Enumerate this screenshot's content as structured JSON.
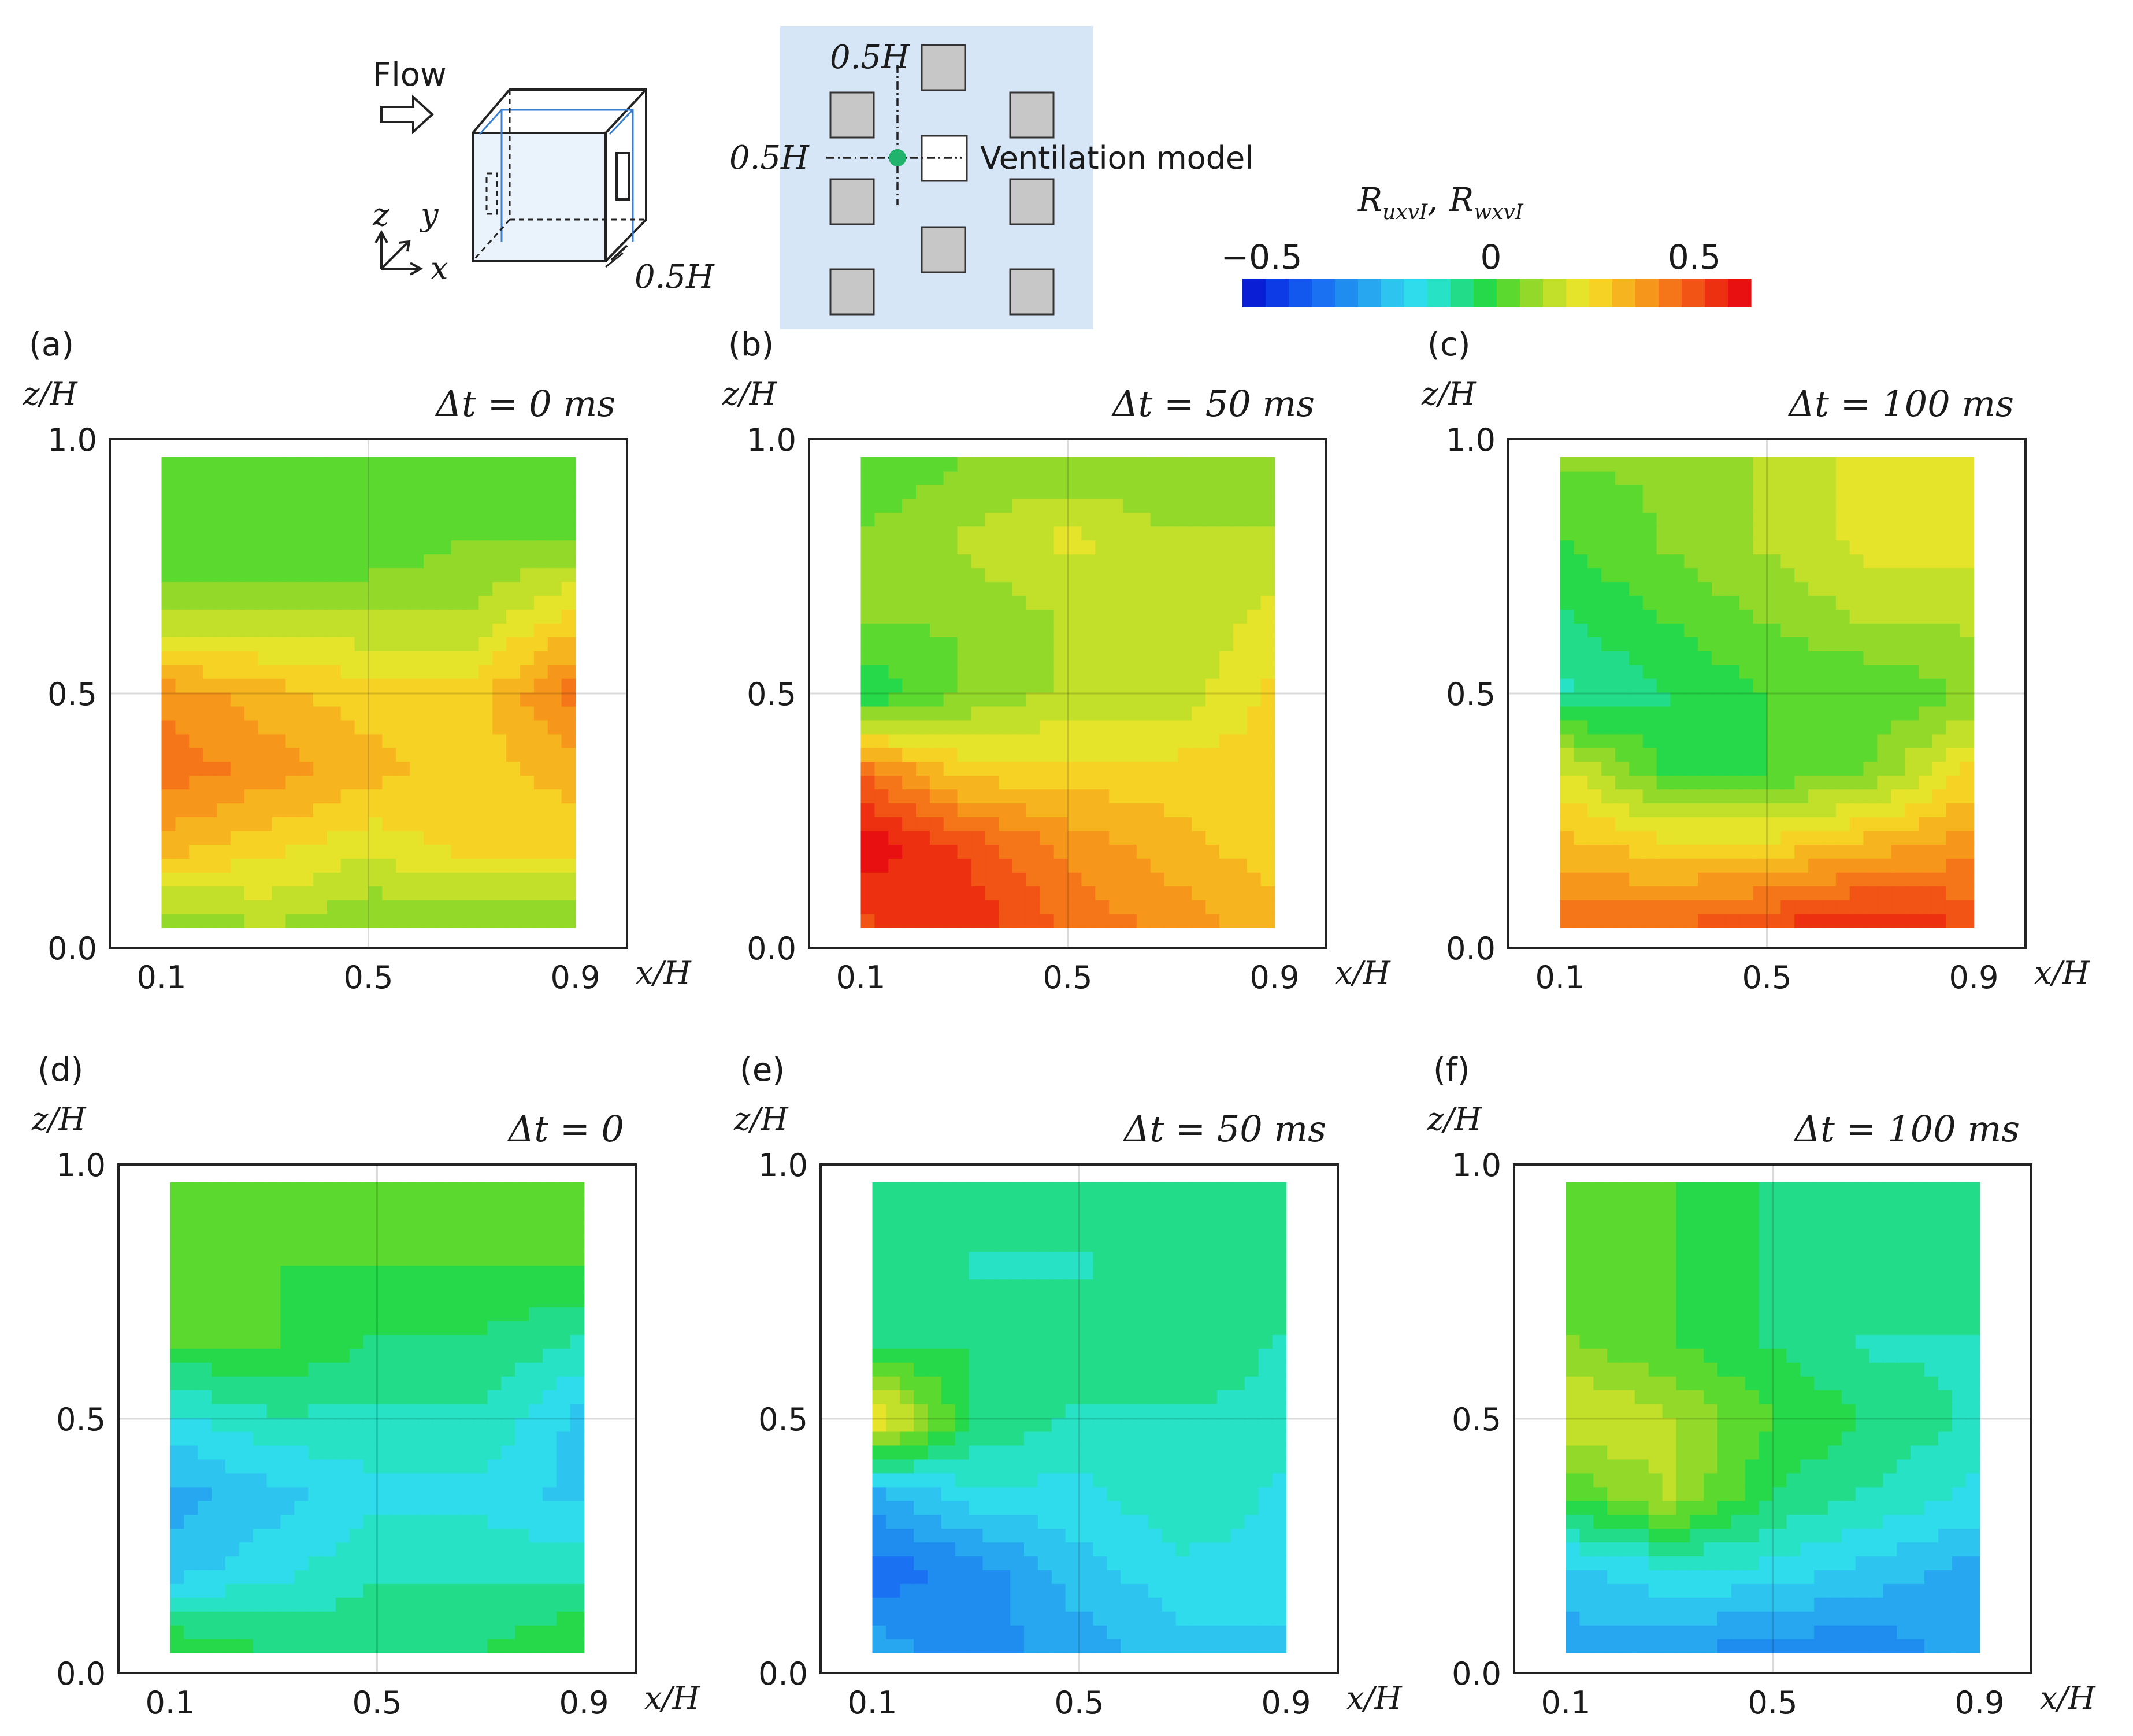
{
  "header": {
    "flow_label": "Flow",
    "axis_z": "z",
    "axis_y": "y",
    "axis_x": "x",
    "cube_opening_label": "0.5H",
    "plan_top_label": "0.5H",
    "plan_left_label": "0.5H",
    "ventilation_label": "Ventilation model"
  },
  "colorbar": {
    "title": "R_{u_x v_I}, R_{w_x v_I}",
    "title_a": "R",
    "title_a_sub": "uxvI",
    "title_sep": ",",
    "title_b": "R",
    "title_b_sub": "wxvI",
    "tick_min": "−0.5",
    "tick_mid": "0",
    "tick_max": "0.5",
    "range": [
      -0.5,
      0.5
    ],
    "colors": [
      "#0a1ed6",
      "#0d3ce6",
      "#1257ee",
      "#1a72f2",
      "#1f8cf0",
      "#26a7f0",
      "#2ec4f0",
      "#2fdcec",
      "#27e2c4",
      "#22dc8a",
      "#26d94a",
      "#5cd92e",
      "#93d92a",
      "#c2e02a",
      "#e6e42a",
      "#f6d224",
      "#f6b41e",
      "#f6961a",
      "#f47618",
      "#f15414",
      "#ec3010",
      "#e81010"
    ]
  },
  "panels": [
    {
      "id": "a",
      "letter": "(a)",
      "dt": "Δt = 0 ms",
      "field": "ux",
      "lag": 0
    },
    {
      "id": "b",
      "letter": "(b)",
      "dt": "Δt = 50 ms",
      "field": "ux",
      "lag": 50
    },
    {
      "id": "c",
      "letter": "(c)",
      "dt": "Δt = 100 ms",
      "field": "ux",
      "lag": 100
    },
    {
      "id": "d",
      "letter": "(d)",
      "dt": "Δt = 0",
      "field": "wx",
      "lag": 0
    },
    {
      "id": "e",
      "letter": "(e)",
      "dt": "Δt = 50 ms",
      "field": "wx",
      "lag": 50
    },
    {
      "id": "f",
      "letter": "(f)",
      "dt": "Δt = 100 ms",
      "field": "wx",
      "lag": 100
    }
  ],
  "axes": {
    "ylabel": "z/H",
    "xlabel": "x/H",
    "yticks": [
      "1.0",
      "0.5",
      "0.0"
    ],
    "xticks": [
      "0.1",
      "0.5",
      "0.9"
    ]
  },
  "chart_data": {
    "type": "heatmap",
    "title": "",
    "xlabel": "x/H",
    "ylabel": "z/H",
    "xlim": [
      0.0,
      1.0
    ],
    "ylim": [
      0.0,
      1.0
    ],
    "x": [
      0.1,
      0.3,
      0.5,
      0.7,
      0.9
    ],
    "y": [
      0.05,
      0.2,
      0.35,
      0.5,
      0.65,
      0.8,
      0.95
    ],
    "series": [
      {
        "name": "(a) R_uxvI, Δt = 0 ms",
        "values": [
          [
            0.05,
            0.1,
            0.05,
            0.05,
            0.05
          ],
          [
            0.25,
            0.2,
            0.15,
            0.2,
            0.2
          ],
          [
            0.35,
            0.3,
            0.25,
            0.2,
            0.25
          ],
          [
            0.3,
            0.25,
            0.2,
            0.2,
            0.35
          ],
          [
            0.1,
            0.1,
            0.1,
            0.1,
            0.2
          ],
          [
            0.0,
            0.0,
            0.0,
            0.05,
            0.05
          ],
          [
            0.0,
            0.0,
            0.0,
            0.0,
            0.0
          ]
        ]
      },
      {
        "name": "(b) R_uxvI, Δt = 50 ms",
        "values": [
          [
            0.4,
            0.45,
            0.35,
            0.3,
            0.25
          ],
          [
            0.5,
            0.4,
            0.3,
            0.25,
            0.2
          ],
          [
            0.35,
            0.2,
            0.2,
            0.2,
            0.2
          ],
          [
            -0.05,
            0.05,
            0.1,
            0.1,
            0.2
          ],
          [
            0.05,
            0.05,
            0.1,
            0.1,
            0.15
          ],
          [
            0.05,
            0.1,
            0.15,
            0.1,
            0.1
          ],
          [
            0.0,
            0.05,
            0.05,
            0.05,
            0.05
          ]
        ]
      },
      {
        "name": "(c) R_uxvI, Δt = 100 ms",
        "values": [
          [
            0.35,
            0.35,
            0.4,
            0.45,
            0.4
          ],
          [
            0.25,
            0.2,
            0.2,
            0.25,
            0.3
          ],
          [
            0.15,
            0.0,
            0.0,
            0.05,
            0.2
          ],
          [
            -0.1,
            -0.05,
            0.0,
            0.0,
            0.05
          ],
          [
            -0.05,
            0.0,
            0.05,
            0.1,
            0.1
          ],
          [
            0.0,
            0.05,
            0.1,
            0.15,
            0.15
          ],
          [
            0.05,
            0.05,
            0.1,
            0.15,
            0.15
          ]
        ]
      },
      {
        "name": "(d) R_wxvI, Δt = 0",
        "values": [
          [
            0.0,
            -0.05,
            -0.05,
            -0.05,
            0.0
          ],
          [
            -0.2,
            -0.15,
            -0.1,
            -0.1,
            -0.1
          ],
          [
            -0.25,
            -0.2,
            -0.15,
            -0.15,
            -0.2
          ],
          [
            -0.15,
            -0.1,
            -0.1,
            -0.1,
            -0.2
          ],
          [
            0.0,
            0.0,
            -0.05,
            -0.05,
            -0.1
          ],
          [
            0.0,
            0.0,
            0.0,
            0.0,
            0.0
          ],
          [
            0.0,
            0.0,
            0.0,
            0.0,
            0.0
          ]
        ]
      },
      {
        "name": "(e) R_wxvI, Δt = 50 ms",
        "values": [
          [
            -0.25,
            -0.3,
            -0.25,
            -0.2,
            -0.2
          ],
          [
            -0.35,
            -0.3,
            -0.2,
            -0.15,
            -0.15
          ],
          [
            -0.25,
            -0.15,
            -0.15,
            -0.1,
            -0.15
          ],
          [
            0.2,
            -0.05,
            -0.1,
            -0.1,
            -0.1
          ],
          [
            -0.05,
            -0.05,
            -0.05,
            -0.05,
            -0.1
          ],
          [
            -0.05,
            -0.1,
            -0.1,
            -0.05,
            -0.05
          ],
          [
            -0.05,
            -0.05,
            -0.05,
            -0.05,
            -0.05
          ]
        ]
      },
      {
        "name": "(f) R_wxvI, Δt = 100 ms",
        "values": [
          [
            -0.25,
            -0.25,
            -0.3,
            -0.3,
            -0.25
          ],
          [
            -0.2,
            -0.15,
            -0.15,
            -0.2,
            -0.25
          ],
          [
            0.0,
            0.1,
            -0.05,
            -0.1,
            -0.15
          ],
          [
            0.15,
            0.1,
            0.0,
            -0.05,
            -0.1
          ],
          [
            0.05,
            0.0,
            -0.05,
            -0.1,
            -0.1
          ],
          [
            0.0,
            0.0,
            -0.05,
            -0.05,
            -0.05
          ],
          [
            0.0,
            0.0,
            -0.05,
            -0.05,
            -0.05
          ]
        ]
      }
    ]
  }
}
